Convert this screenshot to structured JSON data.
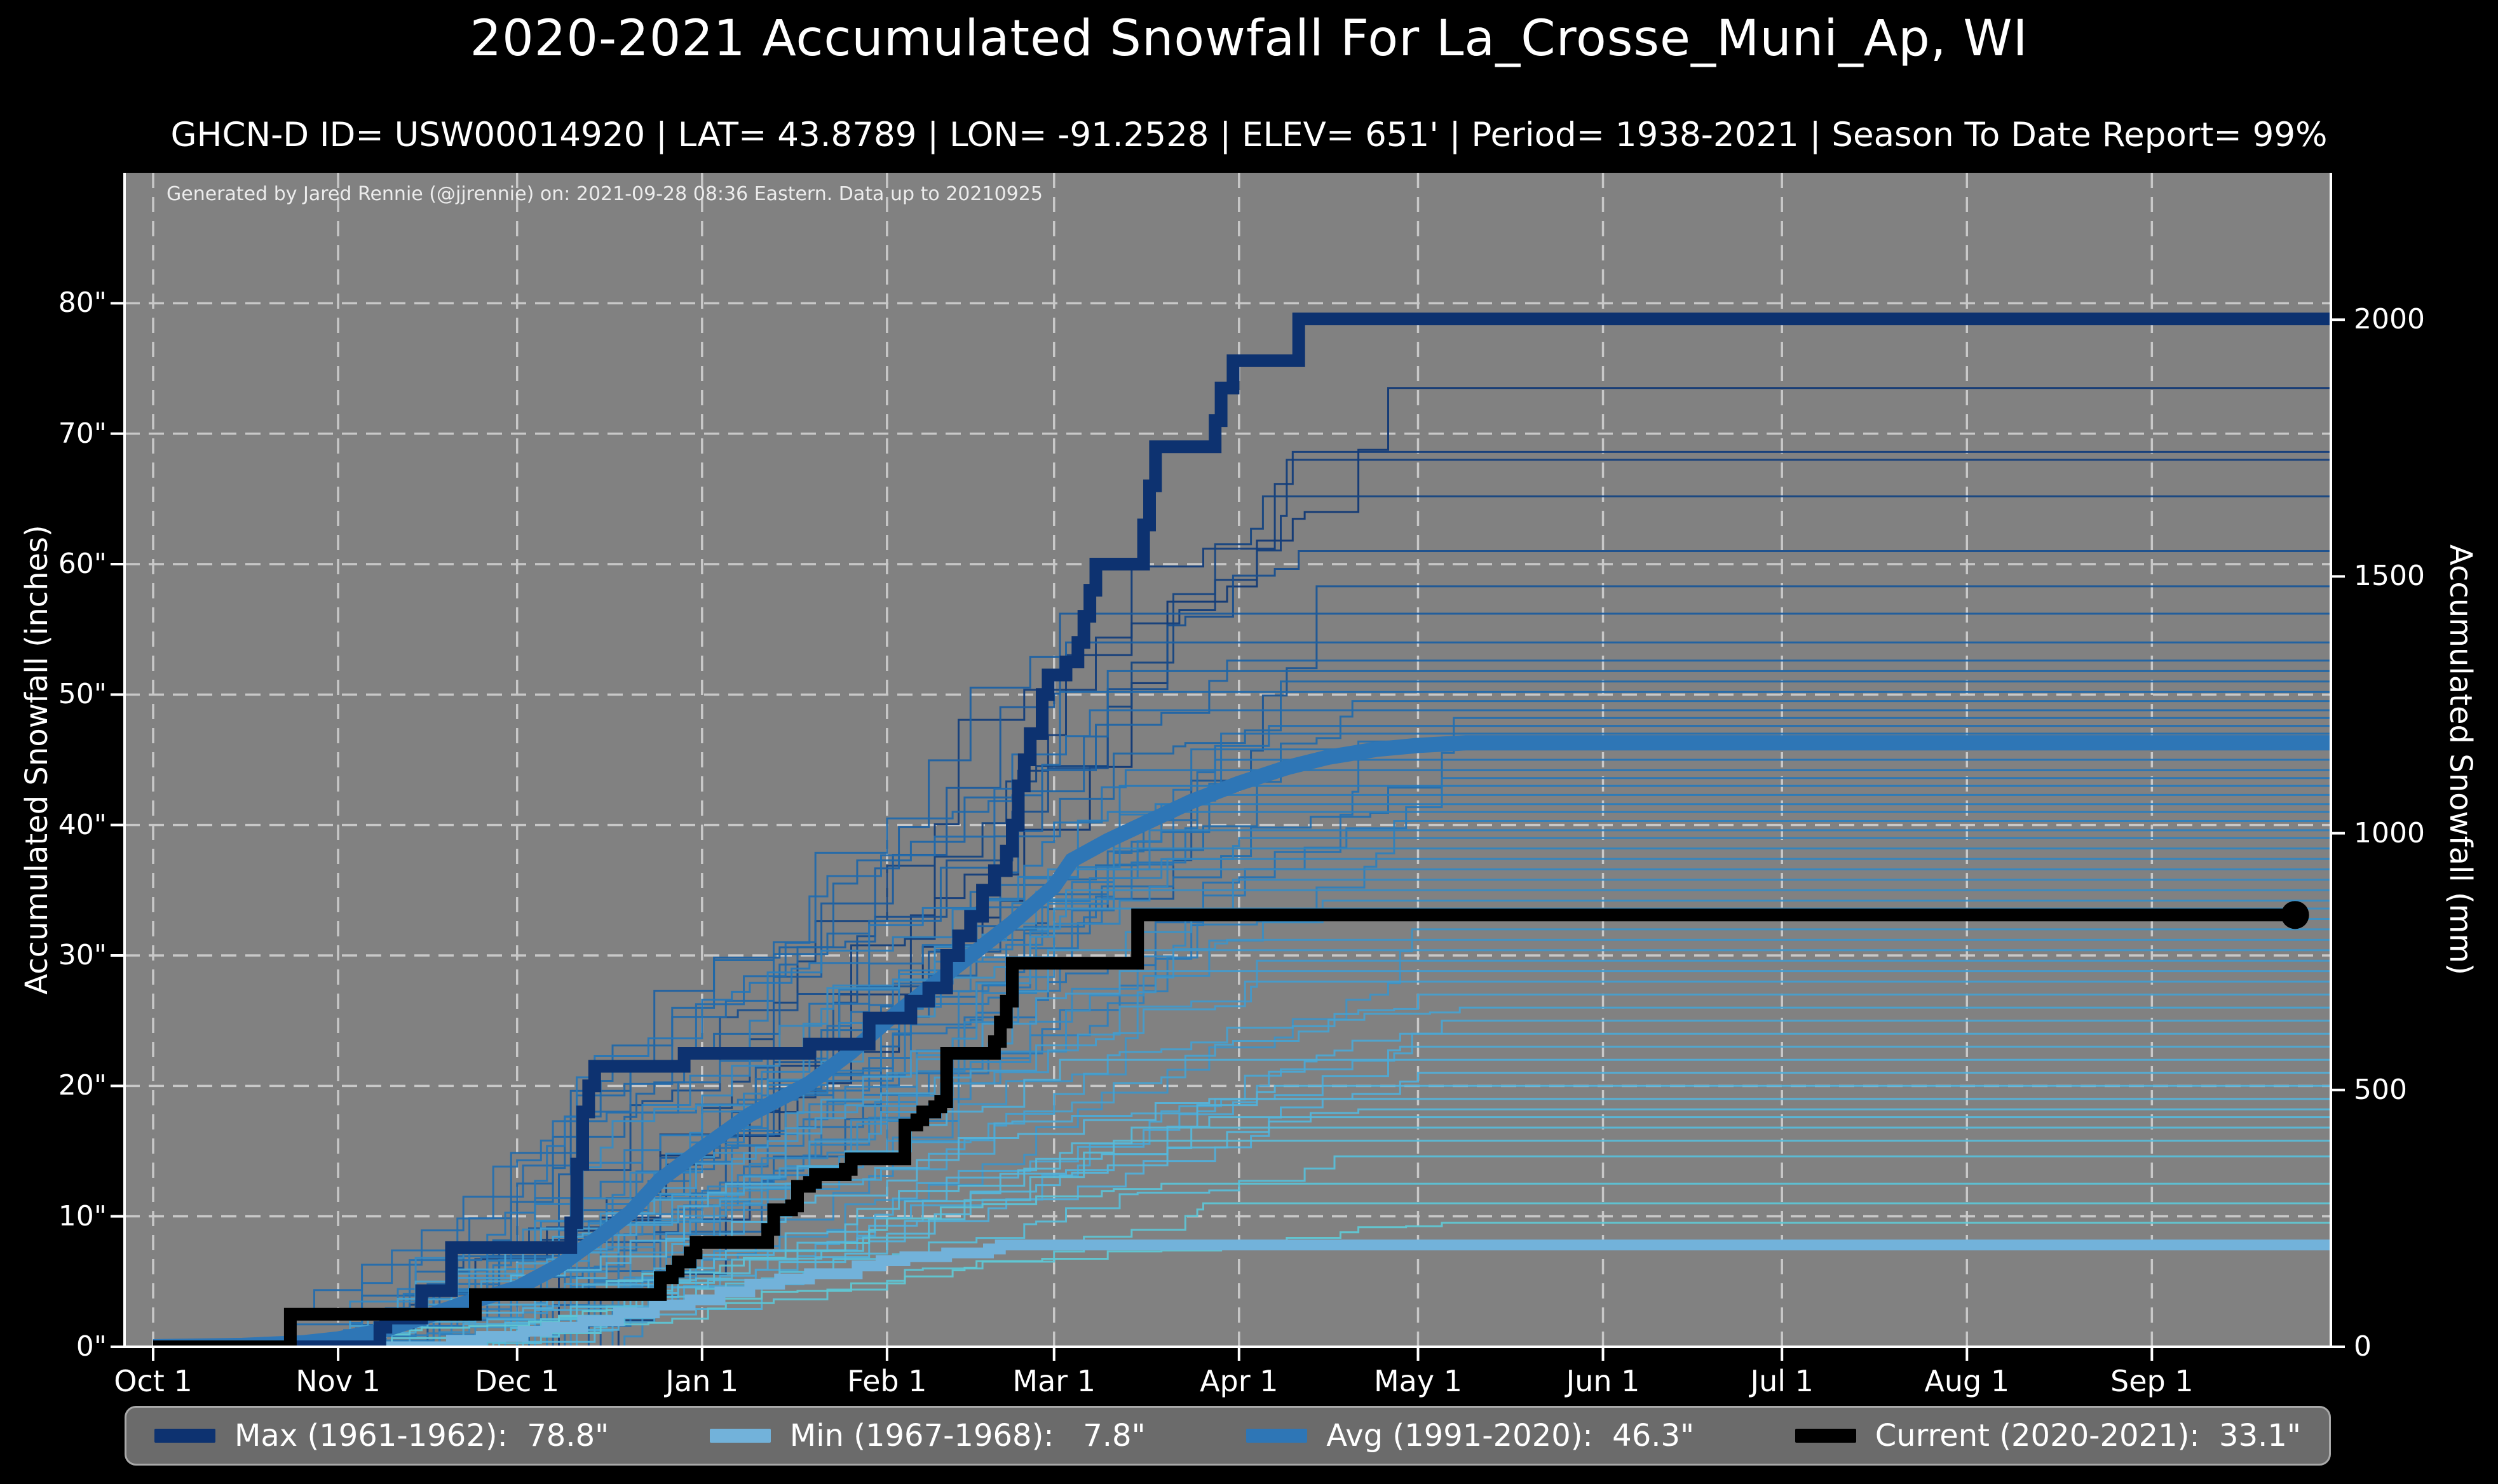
{
  "title": "2020-2021 Accumulated Snowfall For La_Crosse_Muni_Ap, WI",
  "subtitle": "GHCN-D ID= USW00014920 | LAT= 43.8789 | LON= -91.2528 | ELEV= 651' | Period= 1938-2021 | Season To Date Report= 99%",
  "annotation": "Generated by Jared Rennie (@jjrennie) on: 2021-09-28 08:36 Eastern. Data up to 20210925",
  "axes": {
    "left_label": "Accumulated Snowfall (inches)",
    "right_label": "Accumulated Snowfall (mm)",
    "left_ticks": [
      {
        "value": 0,
        "label": "0\""
      },
      {
        "value": 10,
        "label": "10\""
      },
      {
        "value": 20,
        "label": "20\""
      },
      {
        "value": 30,
        "label": "30\""
      },
      {
        "value": 40,
        "label": "40\""
      },
      {
        "value": 50,
        "label": "50\""
      },
      {
        "value": 60,
        "label": "60\""
      },
      {
        "value": 70,
        "label": "70\""
      },
      {
        "value": 80,
        "label": "80\""
      }
    ],
    "right_ticks_mm": [
      {
        "value": 0,
        "label": "0"
      },
      {
        "value": 500,
        "label": "500"
      },
      {
        "value": 1000,
        "label": "1000"
      },
      {
        "value": 1500,
        "label": "1500"
      },
      {
        "value": 2000,
        "label": "2000"
      }
    ],
    "x_ticks": [
      {
        "day": 0,
        "label": "Oct 1"
      },
      {
        "day": 31,
        "label": "Nov 1"
      },
      {
        "day": 61,
        "label": "Dec 1"
      },
      {
        "day": 92,
        "label": "Jan 1"
      },
      {
        "day": 123,
        "label": "Feb 1"
      },
      {
        "day": 151,
        "label": "Mar 1"
      },
      {
        "day": 182,
        "label": "Apr 1"
      },
      {
        "day": 212,
        "label": "May 1"
      },
      {
        "day": 243,
        "label": "Jun 1"
      },
      {
        "day": 273,
        "label": "Jul 1"
      },
      {
        "day": 304,
        "label": "Aug 1"
      },
      {
        "day": 335,
        "label": "Sep 1"
      }
    ],
    "ylim_inches": [
      0,
      90
    ],
    "grid": "dashed"
  },
  "colors": {
    "page_bg": "#000000",
    "plot_bg": "#818181",
    "grid": "#c8c8c8",
    "spine": "#ffffff",
    "text": "#ffffff",
    "annotation_text": "#ececec",
    "legend_bg": "#6b6b6b",
    "legend_border": "#a9a9a9",
    "max": "#0d3270",
    "min": "#72b2da",
    "avg": "#2e76b6",
    "current": "#000000",
    "ramp_low_to_high": [
      "#62cbd2",
      "#53b2da",
      "#3f93c6",
      "#2878b8",
      "#1d5fa0",
      "#143f7c",
      "#0d3270"
    ]
  },
  "legend": {
    "items": [
      {
        "key": "max",
        "label": "Max (1961-1962):",
        "value": "  78.8\""
      },
      {
        "key": "min",
        "label": "Min (1967-1968):",
        "value": "   7.8\""
      },
      {
        "key": "avg",
        "label": "Avg (1991-2020):",
        "value": "  46.3\""
      },
      {
        "key": "current",
        "label": "Current (2020-2021):",
        "value": "  33.1\""
      }
    ]
  },
  "chart_data": {
    "type": "line",
    "x_unit": "days_since_oct_1",
    "title": "2020-2021 Accumulated Snowfall For La_Crosse_Muni_Ap, WI",
    "xlabel": "",
    "ylabel_left": "Accumulated Snowfall (inches)",
    "ylabel_right": "Accumulated Snowfall (mm)",
    "ylim": [
      0,
      90
    ],
    "xlim_days": [
      -4.8,
      365
    ],
    "legend_position": "bottom",
    "series": [
      {
        "name": "Max (1961-1962)",
        "final_inches": 78.8,
        "color_key": "max",
        "width": 20,
        "step": true,
        "points": [
          [
            0,
            0
          ],
          [
            37,
            0
          ],
          [
            38,
            1.5
          ],
          [
            39,
            2.2
          ],
          [
            44,
            2.2
          ],
          [
            45,
            4.3
          ],
          [
            49,
            4.3
          ],
          [
            50,
            7.6
          ],
          [
            69,
            7.6
          ],
          [
            70,
            9.5
          ],
          [
            71,
            14
          ],
          [
            72,
            18
          ],
          [
            73,
            20
          ],
          [
            74,
            21.5
          ],
          [
            88,
            21.5
          ],
          [
            89,
            22.5
          ],
          [
            109,
            22.5
          ],
          [
            110,
            23.2
          ],
          [
            119,
            23.2
          ],
          [
            120,
            25.2
          ],
          [
            125,
            25.2
          ],
          [
            127,
            26.5
          ],
          [
            130,
            27.5
          ],
          [
            133,
            30
          ],
          [
            135,
            31.5
          ],
          [
            137,
            33
          ],
          [
            139,
            35
          ],
          [
            141,
            36.5
          ],
          [
            143,
            38
          ],
          [
            144,
            40
          ],
          [
            145,
            43
          ],
          [
            146,
            45
          ],
          [
            147,
            47
          ],
          [
            149,
            50
          ],
          [
            150,
            51.5
          ],
          [
            153,
            52.5
          ],
          [
            155,
            54
          ],
          [
            156,
            56
          ],
          [
            157,
            58
          ],
          [
            158,
            60
          ],
          [
            165,
            60
          ],
          [
            166,
            63
          ],
          [
            167,
            66
          ],
          [
            168,
            69
          ],
          [
            177,
            69
          ],
          [
            178,
            71
          ],
          [
            179,
            73.5
          ],
          [
            181,
            75.6
          ],
          [
            191,
            75.6
          ],
          [
            192,
            78.8
          ],
          [
            365,
            78.8
          ]
        ]
      },
      {
        "name": "Min (1967-1968)",
        "final_inches": 7.8,
        "color_key": "min",
        "width": 17,
        "step": true,
        "points": [
          [
            0,
            0
          ],
          [
            48,
            0
          ],
          [
            50,
            0.5
          ],
          [
            55,
            0.8
          ],
          [
            62,
            1.2
          ],
          [
            66,
            1.5
          ],
          [
            72,
            2.0
          ],
          [
            78,
            2.6
          ],
          [
            84,
            3.2
          ],
          [
            90,
            3.6
          ],
          [
            95,
            4.2
          ],
          [
            100,
            4.8
          ],
          [
            105,
            5.2
          ],
          [
            110,
            5.6
          ],
          [
            118,
            6.2
          ],
          [
            122,
            6.6
          ],
          [
            126,
            6.9
          ],
          [
            133,
            7.2
          ],
          [
            140,
            7.5
          ],
          [
            142,
            7.8
          ],
          [
            365,
            7.8
          ]
        ]
      },
      {
        "name": "Avg (1991-2020)",
        "final_inches": 46.3,
        "color_key": "avg",
        "width": 24,
        "step": false,
        "points": [
          [
            0,
            0
          ],
          [
            15,
            0.1
          ],
          [
            25,
            0.3
          ],
          [
            31,
            0.6
          ],
          [
            38,
            1.2
          ],
          [
            45,
            2.2
          ],
          [
            52,
            3.3
          ],
          [
            61,
            4.5
          ],
          [
            68,
            6.2
          ],
          [
            75,
            8.5
          ],
          [
            80,
            10.3
          ],
          [
            85,
            12.8
          ],
          [
            92,
            15.2
          ],
          [
            100,
            17.8
          ],
          [
            110,
            20.2
          ],
          [
            117,
            22.6
          ],
          [
            123,
            25.0
          ],
          [
            130,
            27.5
          ],
          [
            137,
            30.0
          ],
          [
            144,
            32.5
          ],
          [
            151,
            35.3
          ],
          [
            154,
            37.3
          ],
          [
            160,
            38.8
          ],
          [
            167,
            40.3
          ],
          [
            174,
            41.8
          ],
          [
            182,
            43.2
          ],
          [
            190,
            44.4
          ],
          [
            197,
            45.2
          ],
          [
            205,
            45.8
          ],
          [
            212,
            46.1
          ],
          [
            220,
            46.3
          ],
          [
            365,
            46.3
          ]
        ]
      },
      {
        "name": "Current (2020-2021)",
        "final_inches": 33.1,
        "color_key": "current",
        "width": 20,
        "step": true,
        "points": [
          [
            0,
            0
          ],
          [
            22,
            0
          ],
          [
            23,
            2.5
          ],
          [
            53,
            2.5
          ],
          [
            54,
            4.0
          ],
          [
            84,
            4.0
          ],
          [
            85,
            5.3
          ],
          [
            87,
            5.8
          ],
          [
            88,
            6.5
          ],
          [
            90,
            7.2
          ],
          [
            91,
            8.0
          ],
          [
            101,
            8.0
          ],
          [
            103,
            9.0
          ],
          [
            104,
            10.5
          ],
          [
            107,
            10.8
          ],
          [
            108,
            12.3
          ],
          [
            110,
            12.6
          ],
          [
            111,
            13.2
          ],
          [
            116,
            13.6
          ],
          [
            117,
            14.4
          ],
          [
            125,
            14.4
          ],
          [
            126,
            17.0
          ],
          [
            128,
            17.4
          ],
          [
            129,
            18.0
          ],
          [
            131,
            18.4
          ],
          [
            132,
            18.8
          ],
          [
            133,
            22.5
          ],
          [
            140,
            22.5
          ],
          [
            141,
            23.4
          ],
          [
            142,
            24.9
          ],
          [
            143,
            26.5
          ],
          [
            144,
            29.4
          ],
          [
            164,
            29.4
          ],
          [
            165,
            33.1
          ],
          [
            359,
            33.1
          ]
        ],
        "end_marker": {
          "day": 359,
          "inches": 33.1
        }
      }
    ],
    "background_years": {
      "description": "historical seasons 1938-2021, colored dark navy (high totals) to light teal (low totals)",
      "final_totals_inches": [
        73.5,
        68.6,
        68.0,
        65.2,
        61.0,
        58.3,
        56.2,
        54.0,
        52.6,
        51.8,
        51.0,
        50.2,
        49.5,
        48.8,
        48.2,
        47.6,
        47.0,
        46.4,
        45.8,
        45.0,
        44.2,
        43.6,
        43.0,
        42.3,
        41.6,
        41.0,
        40.3,
        39.6,
        39.0,
        38.2,
        37.4,
        36.6,
        35.8,
        35.0,
        34.2,
        33.6,
        32.8,
        32.0,
        31.2,
        30.4,
        29.6,
        28.8,
        28.0,
        27.0,
        26.0,
        25.0,
        24.0,
        23.0,
        22.0,
        21.0,
        20.0,
        19.0,
        18.2,
        17.6,
        16.8,
        15.8,
        14.6,
        12.5,
        11.0,
        9.5
      ],
      "value_range_inches": [
        7.8,
        78.8
      ]
    }
  }
}
